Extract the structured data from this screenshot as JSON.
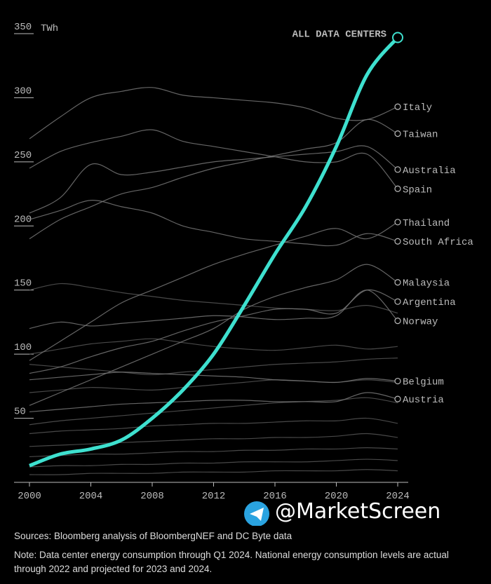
{
  "chart_data": {
    "type": "line",
    "y_unit": "TWh",
    "x": [
      2000,
      2002,
      2004,
      2006,
      2008,
      2010,
      2012,
      2014,
      2016,
      2018,
      2020,
      2022,
      2024
    ],
    "xlim": [
      2000,
      2024
    ],
    "xticks": [
      2000,
      2004,
      2008,
      2012,
      2016,
      2020,
      2024
    ],
    "ylim": [
      0,
      350
    ],
    "yticks": [
      50,
      100,
      150,
      200,
      250,
      300,
      350
    ],
    "series": [
      {
        "color": "#555555",
        "values": [
          100,
          104,
          108,
          110,
          112,
          109,
          106,
          104,
          103,
          105,
          107,
          104,
          106
        ]
      },
      {
        "color": "#555555",
        "values": [
          92,
          90,
          88,
          86,
          84,
          86,
          88,
          90,
          92,
          93,
          94,
          96,
          97
        ]
      },
      {
        "color": "#555555",
        "values": [
          70,
          72,
          74,
          73,
          72,
          74,
          76,
          78,
          80,
          79,
          78,
          80,
          78
        ]
      },
      {
        "color": "#555555",
        "values": [
          45,
          48,
          50,
          52,
          54,
          56,
          58,
          60,
          62,
          63,
          64,
          66,
          62
        ]
      },
      {
        "color": "#555555",
        "values": [
          38,
          40,
          41,
          42,
          44,
          45,
          46,
          46,
          47,
          48,
          48,
          50,
          46
        ]
      },
      {
        "color": "#555555",
        "values": [
          28,
          29,
          30,
          31,
          32,
          33,
          34,
          34,
          35,
          35,
          36,
          38,
          35
        ]
      },
      {
        "color": "#555555",
        "values": [
          20,
          21,
          22,
          22,
          23,
          24,
          24,
          25,
          25,
          26,
          26,
          27,
          26
        ]
      },
      {
        "color": "#555555",
        "values": [
          12,
          13,
          13,
          14,
          14,
          15,
          15,
          16,
          16,
          16,
          17,
          18,
          17
        ]
      },
      {
        "color": "#555555",
        "values": [
          6,
          6,
          7,
          7,
          7,
          8,
          8,
          8,
          9,
          9,
          9,
          10,
          9
        ]
      },
      {
        "color": "#555555",
        "values": [
          150,
          155,
          152,
          148,
          145,
          142,
          140,
          138,
          136,
          135,
          134,
          138,
          132
        ]
      },
      {
        "name": "Italy",
        "color": "#777777",
        "values": [
          268,
          285,
          300,
          305,
          308,
          302,
          300,
          298,
          296,
          292,
          284,
          283,
          293
        ]
      },
      {
        "name": "Taiwan",
        "color": "#777777",
        "values": [
          190,
          205,
          215,
          225,
          230,
          238,
          245,
          250,
          255,
          260,
          265,
          283,
          272
        ]
      },
      {
        "name": "Australia",
        "color": "#777777",
        "values": [
          210,
          222,
          248,
          240,
          242,
          246,
          250,
          252,
          254,
          256,
          258,
          262,
          244
        ]
      },
      {
        "name": "Spain",
        "color": "#777777",
        "values": [
          245,
          258,
          265,
          270,
          275,
          266,
          262,
          258,
          254,
          250,
          250,
          256,
          229
        ]
      },
      {
        "name": "Thailand",
        "color": "#777777",
        "values": [
          95,
          110,
          125,
          140,
          150,
          160,
          170,
          178,
          185,
          192,
          198,
          190,
          203
        ]
      },
      {
        "name": "South Africa",
        "color": "#777777",
        "values": [
          205,
          212,
          220,
          215,
          210,
          200,
          195,
          190,
          188,
          186,
          185,
          194,
          188
        ]
      },
      {
        "name": "Malaysia",
        "color": "#777777",
        "values": [
          60,
          70,
          80,
          90,
          100,
          110,
          120,
          135,
          145,
          152,
          158,
          170,
          156
        ]
      },
      {
        "name": "Argentina",
        "color": "#777777",
        "values": [
          85,
          90,
          98,
          105,
          110,
          118,
          125,
          130,
          135,
          135,
          132,
          150,
          141
        ]
      },
      {
        "name": "Norway",
        "color": "#777777",
        "values": [
          120,
          125,
          122,
          124,
          126,
          128,
          130,
          129,
          127,
          128,
          130,
          150,
          126
        ]
      },
      {
        "name": "Belgium",
        "color": "#777777",
        "values": [
          80,
          82,
          84,
          86,
          85,
          84,
          83,
          82,
          80,
          79,
          78,
          81,
          79
        ]
      },
      {
        "name": "Austria",
        "color": "#777777",
        "values": [
          55,
          57,
          59,
          61,
          62,
          63,
          64,
          64,
          63,
          63,
          63,
          70,
          65
        ]
      },
      {
        "name": "ALL DATA CENTERS",
        "color": "#3ee0cf",
        "highlight": true,
        "values": [
          13,
          22,
          26,
          33,
          50,
          72,
          100,
          138,
          178,
          215,
          262,
          318,
          347
        ]
      }
    ],
    "source": "Sources: Bloomberg analysis of BloombergNEF and DC Byte data",
    "note": "Note: Data center energy consumption through Q1 2024. National energy consumption levels are actual through 2022 and projected for 2023 and 2024.",
    "watermark": "@MarketScreen"
  }
}
